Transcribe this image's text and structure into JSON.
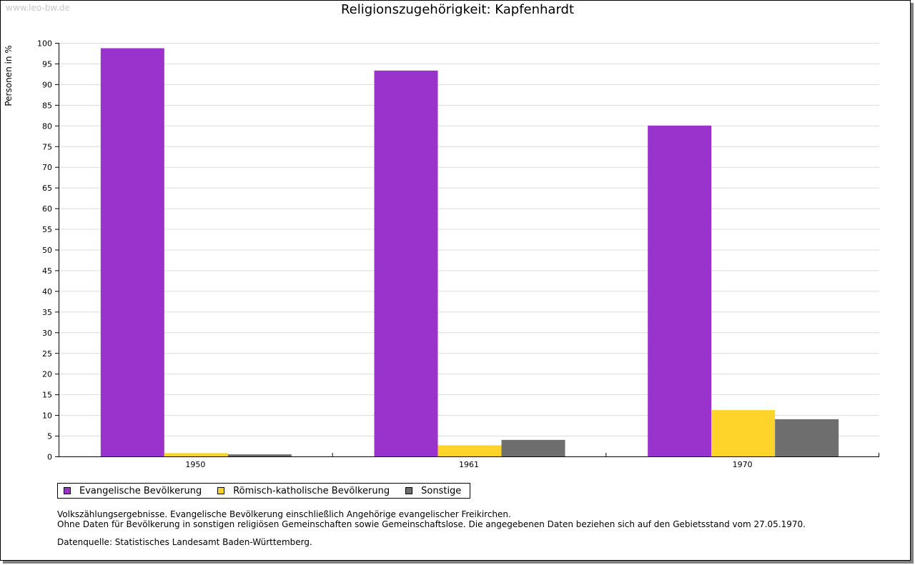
{
  "watermark": "www.leo-bw.de",
  "chart_data": {
    "type": "bar",
    "title": "Religionszugehörigkeit: Kapfenhardt",
    "ylabel": "Personen in %",
    "xlabel": "",
    "ylim": [
      0,
      100
    ],
    "ytick_step": 5,
    "categories": [
      "1950",
      "1961",
      "1970"
    ],
    "series": [
      {
        "name": "Evangelische Bevölkerung",
        "color": "#9933cc",
        "values": [
          98.7,
          93.3,
          80.0
        ]
      },
      {
        "name": "Römisch-katholische Bevölkerung",
        "color": "#ffd42a",
        "values": [
          0.8,
          2.7,
          11.2
        ]
      },
      {
        "name": "Sonstige",
        "color": "#6e6e6e",
        "values": [
          0.5,
          4.0,
          9.0
        ]
      }
    ],
    "grid": true,
    "legend_position": "bottom-left"
  },
  "notes": {
    "line1": "Volkszählungsergebnisse. Evangelische Bevölkerung einschließlich Angehörige evangelischer Freikirchen.",
    "line2": "Ohne Daten für Bevölkerung in sonstigen religiösen Gemeinschaften sowie Gemeinschaftslose. Die angegebenen Daten beziehen sich auf den Gebietsstand vom 27.05.1970."
  },
  "source": "Datenquelle: Statistisches Landesamt Baden-Württemberg."
}
